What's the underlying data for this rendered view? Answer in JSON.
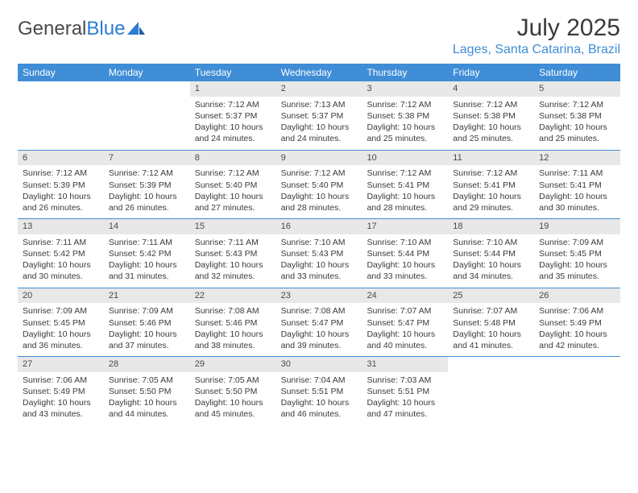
{
  "brand": {
    "part1": "General",
    "part2": "Blue"
  },
  "title": "July 2025",
  "location": "Lages, Santa Catarina, Brazil",
  "colors": {
    "accent": "#3f8dd6",
    "daynum_bg": "#e8e8e8",
    "text": "#3a3a3a",
    "white": "#ffffff"
  },
  "day_headers": [
    "Sunday",
    "Monday",
    "Tuesday",
    "Wednesday",
    "Thursday",
    "Friday",
    "Saturday"
  ],
  "weeks": [
    [
      null,
      null,
      {
        "n": "1",
        "sr": "7:12 AM",
        "ss": "5:37 PM",
        "dl": "10 hours and 24 minutes."
      },
      {
        "n": "2",
        "sr": "7:13 AM",
        "ss": "5:37 PM",
        "dl": "10 hours and 24 minutes."
      },
      {
        "n": "3",
        "sr": "7:12 AM",
        "ss": "5:38 PM",
        "dl": "10 hours and 25 minutes."
      },
      {
        "n": "4",
        "sr": "7:12 AM",
        "ss": "5:38 PM",
        "dl": "10 hours and 25 minutes."
      },
      {
        "n": "5",
        "sr": "7:12 AM",
        "ss": "5:38 PM",
        "dl": "10 hours and 25 minutes."
      }
    ],
    [
      {
        "n": "6",
        "sr": "7:12 AM",
        "ss": "5:39 PM",
        "dl": "10 hours and 26 minutes."
      },
      {
        "n": "7",
        "sr": "7:12 AM",
        "ss": "5:39 PM",
        "dl": "10 hours and 26 minutes."
      },
      {
        "n": "8",
        "sr": "7:12 AM",
        "ss": "5:40 PM",
        "dl": "10 hours and 27 minutes."
      },
      {
        "n": "9",
        "sr": "7:12 AM",
        "ss": "5:40 PM",
        "dl": "10 hours and 28 minutes."
      },
      {
        "n": "10",
        "sr": "7:12 AM",
        "ss": "5:41 PM",
        "dl": "10 hours and 28 minutes."
      },
      {
        "n": "11",
        "sr": "7:12 AM",
        "ss": "5:41 PM",
        "dl": "10 hours and 29 minutes."
      },
      {
        "n": "12",
        "sr": "7:11 AM",
        "ss": "5:41 PM",
        "dl": "10 hours and 30 minutes."
      }
    ],
    [
      {
        "n": "13",
        "sr": "7:11 AM",
        "ss": "5:42 PM",
        "dl": "10 hours and 30 minutes."
      },
      {
        "n": "14",
        "sr": "7:11 AM",
        "ss": "5:42 PM",
        "dl": "10 hours and 31 minutes."
      },
      {
        "n": "15",
        "sr": "7:11 AM",
        "ss": "5:43 PM",
        "dl": "10 hours and 32 minutes."
      },
      {
        "n": "16",
        "sr": "7:10 AM",
        "ss": "5:43 PM",
        "dl": "10 hours and 33 minutes."
      },
      {
        "n": "17",
        "sr": "7:10 AM",
        "ss": "5:44 PM",
        "dl": "10 hours and 33 minutes."
      },
      {
        "n": "18",
        "sr": "7:10 AM",
        "ss": "5:44 PM",
        "dl": "10 hours and 34 minutes."
      },
      {
        "n": "19",
        "sr": "7:09 AM",
        "ss": "5:45 PM",
        "dl": "10 hours and 35 minutes."
      }
    ],
    [
      {
        "n": "20",
        "sr": "7:09 AM",
        "ss": "5:45 PM",
        "dl": "10 hours and 36 minutes."
      },
      {
        "n": "21",
        "sr": "7:09 AM",
        "ss": "5:46 PM",
        "dl": "10 hours and 37 minutes."
      },
      {
        "n": "22",
        "sr": "7:08 AM",
        "ss": "5:46 PM",
        "dl": "10 hours and 38 minutes."
      },
      {
        "n": "23",
        "sr": "7:08 AM",
        "ss": "5:47 PM",
        "dl": "10 hours and 39 minutes."
      },
      {
        "n": "24",
        "sr": "7:07 AM",
        "ss": "5:47 PM",
        "dl": "10 hours and 40 minutes."
      },
      {
        "n": "25",
        "sr": "7:07 AM",
        "ss": "5:48 PM",
        "dl": "10 hours and 41 minutes."
      },
      {
        "n": "26",
        "sr": "7:06 AM",
        "ss": "5:49 PM",
        "dl": "10 hours and 42 minutes."
      }
    ],
    [
      {
        "n": "27",
        "sr": "7:06 AM",
        "ss": "5:49 PM",
        "dl": "10 hours and 43 minutes."
      },
      {
        "n": "28",
        "sr": "7:05 AM",
        "ss": "5:50 PM",
        "dl": "10 hours and 44 minutes."
      },
      {
        "n": "29",
        "sr": "7:05 AM",
        "ss": "5:50 PM",
        "dl": "10 hours and 45 minutes."
      },
      {
        "n": "30",
        "sr": "7:04 AM",
        "ss": "5:51 PM",
        "dl": "10 hours and 46 minutes."
      },
      {
        "n": "31",
        "sr": "7:03 AM",
        "ss": "5:51 PM",
        "dl": "10 hours and 47 minutes."
      },
      null,
      null
    ]
  ],
  "labels": {
    "sunrise": "Sunrise:",
    "sunset": "Sunset:",
    "daylight": "Daylight:"
  }
}
